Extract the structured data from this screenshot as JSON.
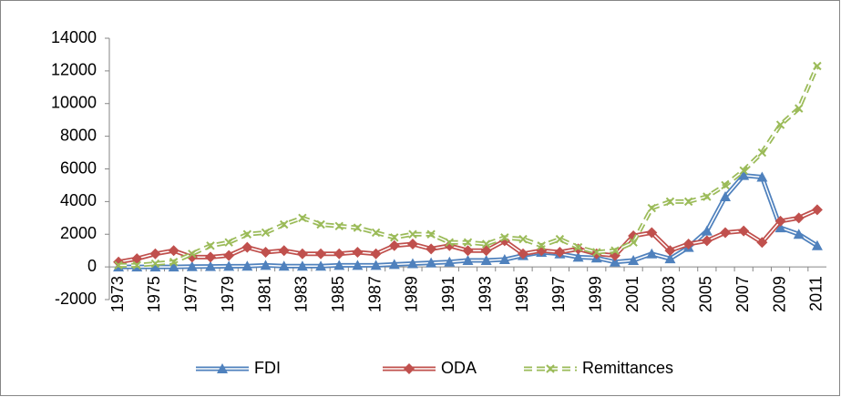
{
  "chart_data": {
    "type": "line",
    "categories": [
      "1973",
      null,
      "1975",
      null,
      "1977",
      null,
      "1979",
      null,
      "1981",
      null,
      "1983",
      null,
      "1985",
      null,
      "1987",
      null,
      "1989",
      null,
      "1991",
      null,
      "1993",
      null,
      "1995",
      null,
      "1997",
      null,
      "1999",
      null,
      "2001",
      null,
      "2003",
      null,
      "2005",
      null,
      "2007",
      null,
      "2009",
      null,
      "2011"
    ],
    "series": [
      {
        "name": "FDI",
        "color": "#4f81bd",
        "marker": "triangle",
        "dash": false,
        "values": [
          0,
          0,
          0,
          0,
          20,
          30,
          40,
          50,
          100,
          50,
          50,
          50,
          100,
          100,
          100,
          150,
          200,
          250,
          300,
          400,
          400,
          450,
          700,
          900,
          800,
          600,
          550,
          300,
          400,
          800,
          500,
          1200,
          2200,
          4300,
          5600,
          5500,
          2400,
          2000,
          1300
        ]
      },
      {
        "name": "ODA",
        "color": "#c0504d",
        "marker": "diamond",
        "dash": false,
        "values": [
          300,
          500,
          800,
          1000,
          600,
          600,
          700,
          1200,
          900,
          1000,
          800,
          800,
          800,
          900,
          800,
          1300,
          1400,
          1100,
          1300,
          1000,
          1000,
          1600,
          800,
          1000,
          900,
          1100,
          800,
          700,
          1900,
          2100,
          1000,
          1400,
          1600,
          2100,
          2200,
          1500,
          2800,
          3000,
          3500
        ]
      },
      {
        "name": "Remittances",
        "color": "#9bbb59",
        "marker": "x",
        "dash": true,
        "values": [
          100,
          100,
          200,
          300,
          800,
          1300,
          1500,
          2000,
          2100,
          2600,
          3000,
          2600,
          2500,
          2400,
          2100,
          1800,
          2000,
          2000,
          1500,
          1500,
          1400,
          1800,
          1700,
          1300,
          1700,
          1200,
          900,
          1000,
          1500,
          3600,
          4000,
          4000,
          4300,
          5000,
          5900,
          7000,
          8700,
          9700,
          12300
        ]
      }
    ],
    "ylim": [
      -2000,
      14000
    ],
    "yticks": [
      -2000,
      0,
      2000,
      4000,
      6000,
      8000,
      10000,
      12000,
      14000
    ],
    "grid": false,
    "legend": "bottom"
  }
}
